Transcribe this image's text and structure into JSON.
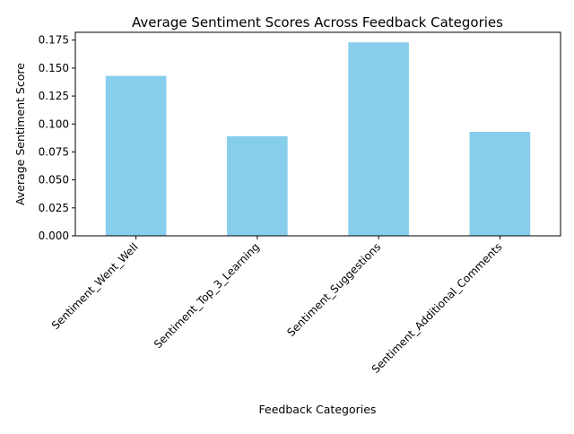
{
  "chart_data": {
    "type": "bar",
    "title": "Average Sentiment Scores Across Feedback Categories",
    "xlabel": "Feedback Categories",
    "ylabel": "Average Sentiment Score",
    "categories": [
      "Sentiment_Went_Well",
      "Sentiment_Top_3_Learning",
      "Sentiment_Suggestions",
      "Sentiment_Additional_Comments"
    ],
    "values": [
      0.143,
      0.089,
      0.173,
      0.093
    ],
    "ylim": [
      0,
      0.182
    ],
    "yticks": [
      "0.000",
      "0.025",
      "0.050",
      "0.075",
      "0.100",
      "0.125",
      "0.150",
      "0.175"
    ],
    "bar_color": "#87CEEB",
    "grid": false,
    "legend": "none"
  }
}
